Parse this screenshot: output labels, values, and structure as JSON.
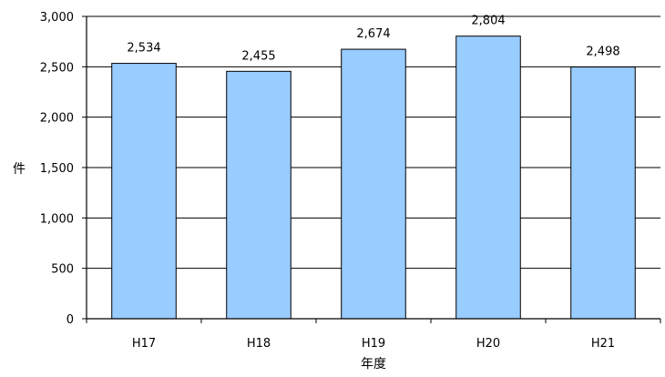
{
  "chart_data": {
    "type": "bar",
    "title": "",
    "xlabel": "年度",
    "ylabel": "件",
    "categories": [
      "H17",
      "H18",
      "H19",
      "H20",
      "H21"
    ],
    "values": [
      2534,
      2455,
      2674,
      2804,
      2498
    ],
    "value_labels": [
      "2,534",
      "2,455",
      "2,674",
      "2,804",
      "2,498"
    ],
    "ylim": [
      0,
      3000
    ],
    "yticks": [
      0,
      500,
      1000,
      1500,
      2000,
      2500,
      3000
    ],
    "ytick_labels": [
      "0",
      "500",
      "1,000",
      "1,500",
      "2,000",
      "2,500",
      "3,000"
    ],
    "grid": true,
    "legend": "none",
    "bar_color": "#99ccff"
  }
}
